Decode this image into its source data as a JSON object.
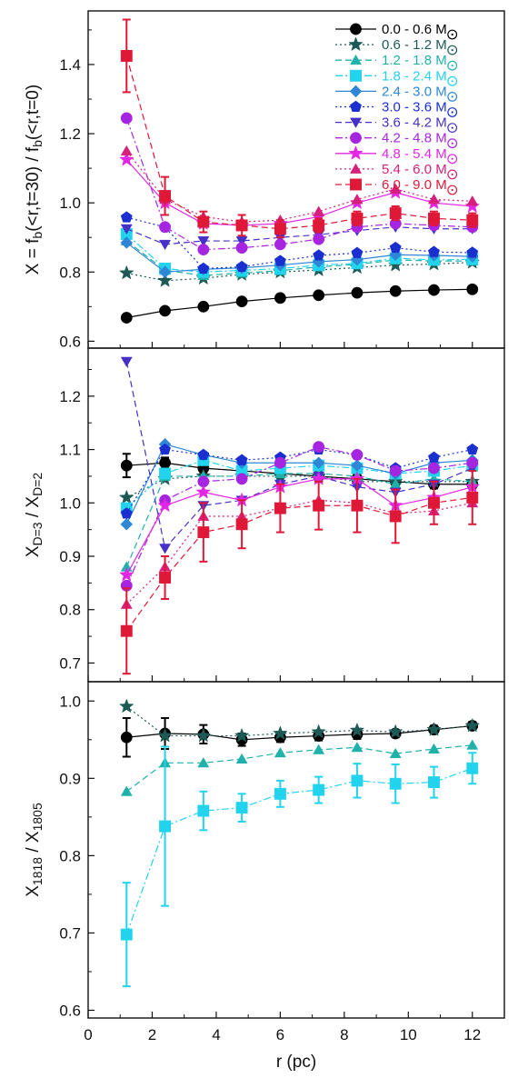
{
  "chart_data": {
    "type": "scatter",
    "xlabel": "r (pc)",
    "xlim": [
      0,
      13
    ],
    "xticks": [
      0,
      2,
      4,
      6,
      8,
      10,
      12
    ],
    "xticklabels": [
      "0",
      "2",
      "4",
      "6",
      "8",
      "10",
      "12"
    ],
    "r": [
      1.2,
      2.4,
      3.6,
      4.8,
      6.0,
      7.2,
      8.4,
      9.6,
      10.8,
      12.0
    ],
    "legend": {
      "placement": "top-right",
      "entries": [
        {
          "range": "0.0 - 0.6 M",
          "color": "#000000",
          "marker": "circle",
          "dash": "solid"
        },
        {
          "range": "0.6 - 1.2 M",
          "color": "#1d5a56",
          "marker": "star",
          "dash": "dotted"
        },
        {
          "range": "1.2 - 1.8 M",
          "color": "#20b2aa",
          "marker": "triangle",
          "dash": "dashed"
        },
        {
          "range": "1.8 - 2.4 M",
          "color": "#22d3ee",
          "marker": "square",
          "dash": "dashdot"
        },
        {
          "range": "2.4 - 3.0 M",
          "color": "#2f86d6",
          "marker": "diamond",
          "dash": "solid"
        },
        {
          "range": "3.0 - 3.6 M",
          "color": "#1a2fd0",
          "marker": "pentagon",
          "dash": "dotted"
        },
        {
          "range": "3.6 - 4.2 M",
          "color": "#4531c8",
          "marker": "triangle-down",
          "dash": "dashed"
        },
        {
          "range": "4.2 - 4.8 M",
          "color": "#a625e0",
          "marker": "circle",
          "dash": "dashdot"
        },
        {
          "range": "4.8 - 5.4 M",
          "color": "#e326e3",
          "marker": "star",
          "dash": "solid"
        },
        {
          "range": "5.4 - 6.0 M",
          "color": "#d6207a",
          "marker": "triangle",
          "dash": "dotted"
        },
        {
          "range": "6.0 - 9.0 M",
          "color": "#e01838",
          "marker": "square",
          "dash": "dashed"
        }
      ]
    },
    "panels": [
      {
        "ylabel_main": "X = f",
        "ylabel_parts": [
          {
            "t": "X = f",
            "s": "n"
          },
          {
            "t": "b",
            "s": "sub"
          },
          {
            "t": "(<r,t=30) / f",
            "s": "n"
          },
          {
            "t": "b",
            "s": "sub"
          },
          {
            "t": "(<r,t=0)",
            "s": "n"
          }
        ],
        "ylim": [
          0.58,
          1.555
        ],
        "yticks": [
          0.6,
          0.8,
          1.0,
          1.2,
          1.4
        ],
        "yticklabels": [
          "0.6",
          "0.8",
          "1.0",
          "1.2",
          "1.4"
        ],
        "series": [
          {
            "range": "0.0 - 0.6 M",
            "values": [
              0.668,
              0.688,
              0.7,
              0.715,
              0.725,
              0.733,
              0.74,
              0.745,
              0.748,
              0.75
            ]
          },
          {
            "range": "0.6 - 1.2 M",
            "values": [
              0.797,
              0.775,
              0.782,
              0.793,
              0.8,
              0.806,
              0.813,
              0.82,
              0.823,
              0.828
            ]
          },
          {
            "range": "1.2 - 1.8 M",
            "values": [
              0.89,
              0.805,
              0.79,
              0.797,
              0.804,
              0.815,
              0.822,
              0.835,
              0.832,
              0.832
            ]
          },
          {
            "range": "1.8 - 2.4 M",
            "values": [
              0.91,
              0.81,
              0.8,
              0.805,
              0.81,
              0.82,
              0.825,
              0.84,
              0.835,
              0.837
            ]
          },
          {
            "range": "2.4 - 3.0 M",
            "values": [
              0.885,
              0.8,
              0.808,
              0.812,
              0.82,
              0.83,
              0.836,
              0.85,
              0.848,
              0.845
            ]
          },
          {
            "range": "3.0 - 3.6 M",
            "values": [
              0.958,
              0.93,
              0.81,
              0.815,
              0.832,
              0.848,
              0.855,
              0.87,
              0.858,
              0.856
            ]
          },
          {
            "range": "3.6 - 4.2 M",
            "values": [
              0.925,
              0.88,
              0.89,
              0.89,
              0.9,
              0.908,
              0.92,
              0.93,
              0.925,
              0.925
            ]
          },
          {
            "range": "4.2 - 4.8 M",
            "values": [
              1.245,
              0.93,
              0.865,
              0.87,
              0.88,
              0.895,
              0.93,
              0.94,
              0.935,
              0.93
            ]
          },
          {
            "range": "4.8 - 5.4 M",
            "values": [
              1.125,
              1.0,
              0.94,
              0.935,
              0.94,
              0.96,
              1.0,
              1.03,
              1.0,
              0.99
            ]
          },
          {
            "range": "5.4 - 6.0 M",
            "values": [
              1.15,
              1.01,
              0.96,
              0.945,
              0.95,
              0.975,
              1.01,
              1.04,
              1.01,
              1.005
            ]
          },
          {
            "range": "6.0 - 9.0 M",
            "values": [
              1.425,
              1.02,
              0.945,
              0.935,
              0.925,
              0.935,
              0.955,
              0.97,
              0.955,
              0.95
            ],
            "errors": [
              0.105,
              0.055,
              0.03,
              0.03,
              0.025,
              0.02,
              0.02,
              0.02,
              0.02,
              0.02
            ]
          }
        ]
      },
      {
        "ylabel_parts": [
          {
            "t": "X",
            "s": "n"
          },
          {
            "t": "D=3",
            "s": "sub"
          },
          {
            "t": " / X",
            "s": "n"
          },
          {
            "t": "D=2",
            "s": "sub"
          }
        ],
        "ylim": [
          0.665,
          1.29
        ],
        "yticks": [
          0.7,
          0.8,
          0.9,
          1.0,
          1.1,
          1.2
        ],
        "yticklabels": [
          "0.7",
          "0.8",
          "0.9",
          "1.0",
          "1.1",
          "1.2"
        ],
        "series": [
          {
            "range": "0.0 - 0.6 M",
            "values": [
              1.07,
              1.075,
              1.065,
              1.06,
              1.055,
              1.05,
              1.045,
              1.04,
              1.035,
              1.035
            ],
            "errors": [
              0.022,
              0.01,
              0.008,
              0.008,
              0.008,
              0.008,
              0.008,
              0.008,
              0.008,
              0.008
            ]
          },
          {
            "range": "0.6 - 1.2 M",
            "values": [
              1.01,
              1.045,
              1.05,
              1.05,
              1.05,
              1.05,
              1.04,
              1.04,
              1.04,
              1.04
            ]
          },
          {
            "range": "1.2 - 1.8 M",
            "values": [
              0.88,
              1.05,
              1.05,
              1.05,
              1.055,
              1.055,
              1.05,
              1.035,
              1.045,
              1.04
            ]
          },
          {
            "range": "1.8 - 2.4 M",
            "values": [
              0.99,
              1.055,
              1.08,
              1.06,
              1.065,
              1.07,
              1.065,
              1.055,
              1.06,
              1.07
            ]
          },
          {
            "range": "2.4 - 3.0 M",
            "values": [
              0.96,
              1.11,
              1.09,
              1.075,
              1.075,
              1.075,
              1.07,
              1.055,
              1.075,
              1.08
            ]
          },
          {
            "range": "3.0 - 3.6 M",
            "values": [
              0.98,
              1.1,
              1.09,
              1.08,
              1.085,
              1.1,
              1.09,
              1.065,
              1.085,
              1.1
            ]
          },
          {
            "range": "3.6 - 4.2 M",
            "values": [
              1.265,
              0.915,
              0.995,
              1.005,
              1.035,
              1.05,
              1.03,
              1.02,
              1.035,
              1.065
            ]
          },
          {
            "range": "4.2 - 4.8 M",
            "values": [
              0.845,
              1.005,
              1.04,
              1.045,
              1.075,
              1.105,
              1.09,
              1.06,
              1.065,
              1.075
            ]
          },
          {
            "range": "4.8 - 5.4 M",
            "values": [
              0.865,
              0.995,
              1.02,
              1.005,
              1.03,
              1.045,
              1.045,
              0.995,
              1.01,
              1.03
            ]
          },
          {
            "range": "5.4 - 6.0 M",
            "values": [
              0.81,
              0.88,
              0.975,
              0.975,
              0.99,
              1.005,
              1.0,
              0.98,
              0.985,
              1.0
            ]
          },
          {
            "range": "6.0 - 9.0 M",
            "values": [
              0.76,
              0.86,
              0.945,
              0.96,
              0.99,
              0.995,
              0.995,
              0.975,
              1.0,
              1.01
            ],
            "errors": [
              0.08,
              0.04,
              0.055,
              0.045,
              0.045,
              0.045,
              0.05,
              0.05,
              0.04,
              0.05
            ]
          }
        ]
      },
      {
        "ylabel_parts": [
          {
            "t": "X",
            "s": "n"
          },
          {
            "t": "1818",
            "s": "sub"
          },
          {
            "t": " / X",
            "s": "n"
          },
          {
            "t": "1805",
            "s": "sub"
          }
        ],
        "ylim": [
          0.59,
          1.025
        ],
        "yticks": [
          0.6,
          0.7,
          0.8,
          0.9,
          1.0
        ],
        "yticklabels": [
          "0.6",
          "0.7",
          "0.8",
          "0.9",
          "1.0"
        ],
        "series": [
          {
            "range": "0.0 - 0.6 M",
            "values": [
              0.953,
              0.958,
              0.957,
              0.95,
              0.953,
              0.955,
              0.957,
              0.958,
              0.963,
              0.968
            ],
            "errors": [
              0.025,
              0.02,
              0.012,
              0.008,
              0.006,
              0.006,
              0.006,
              0.005,
              0.005,
              0.005
            ]
          },
          {
            "range": "0.6 - 1.2 M",
            "values": [
              0.993,
              0.955,
              0.955,
              0.955,
              0.958,
              0.96,
              0.962,
              0.96,
              0.963,
              0.968
            ]
          },
          {
            "range": "1.2 - 1.8 M",
            "values": [
              0.883,
              0.92,
              0.92,
              0.925,
              0.933,
              0.937,
              0.94,
              0.932,
              0.938,
              0.943
            ]
          },
          {
            "range": "1.8 - 2.4 M",
            "values": [
              0.698,
              0.838,
              0.858,
              0.862,
              0.88,
              0.885,
              0.897,
              0.893,
              0.895,
              0.913
            ],
            "errors": [
              0.067,
              0.103,
              0.025,
              0.018,
              0.017,
              0.017,
              0.022,
              0.025,
              0.02,
              0.02
            ]
          }
        ]
      }
    ]
  }
}
